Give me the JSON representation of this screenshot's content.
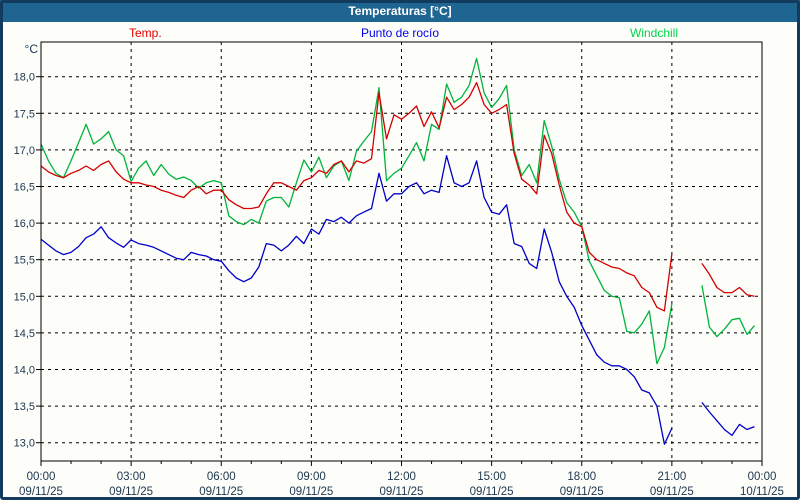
{
  "window": {
    "title": "Temperaturas [°C]"
  },
  "legend": {
    "temp": "Temp.",
    "dew": "Punto de rocío",
    "windchill": "Windchill"
  },
  "colors": {
    "titlebar_background": "#1f6592",
    "outer_frame": "#123b5e",
    "title_text": "#ffffff",
    "axis_text": "#20384f",
    "grid": "#000000",
    "temp_line": "#d40000",
    "dew_point_line": "#0000c8",
    "windchill_line": "#00b43c"
  },
  "chart_data": {
    "type": "line",
    "title": "Temperaturas [°C]",
    "xlabel": "",
    "ylabel": "°C",
    "ylim": [
      12.7,
      18.5
    ],
    "grid": "dashed",
    "legend_position": "top",
    "sample_interval_minutes": 15,
    "x_hours_span": 24,
    "y_ticks": [
      {
        "v": 18.0,
        "label": "18,0"
      },
      {
        "v": 17.5,
        "label": "17,5"
      },
      {
        "v": 17.0,
        "label": "17,0"
      },
      {
        "v": 16.5,
        "label": "16,5"
      },
      {
        "v": 16.0,
        "label": "16,0"
      },
      {
        "v": 15.5,
        "label": "15,5"
      },
      {
        "v": 15.0,
        "label": "15,0"
      },
      {
        "v": 14.5,
        "label": "14,5"
      },
      {
        "v": 14.0,
        "label": "14,0"
      },
      {
        "v": 13.5,
        "label": "13,5"
      },
      {
        "v": 13.0,
        "label": "13,0"
      }
    ],
    "x_ticks": [
      {
        "h": 0,
        "time": "00:00",
        "date": "09/11/25"
      },
      {
        "h": 3,
        "time": "03:00",
        "date": "09/11/25"
      },
      {
        "h": 6,
        "time": "06:00",
        "date": "09/11/25"
      },
      {
        "h": 9,
        "time": "09:00",
        "date": "09/11/25"
      },
      {
        "h": 12,
        "time": "12:00",
        "date": "09/11/25"
      },
      {
        "h": 15,
        "time": "15:00",
        "date": "09/11/25"
      },
      {
        "h": 18,
        "time": "18:00",
        "date": "09/11/25"
      },
      {
        "h": 21,
        "time": "21:00",
        "date": "09/11/25"
      },
      {
        "h": 24,
        "time": "00:00",
        "date": "10/11/25"
      }
    ],
    "series": [
      {
        "name": "Temp.",
        "color": "#d40000",
        "values": [
          16.78,
          16.7,
          16.65,
          16.62,
          16.68,
          16.72,
          16.78,
          16.72,
          16.8,
          16.85,
          16.7,
          16.6,
          16.55,
          16.55,
          16.52,
          16.5,
          16.45,
          16.42,
          16.38,
          16.35,
          16.45,
          16.5,
          16.4,
          16.45,
          16.45,
          16.32,
          16.25,
          16.2,
          16.2,
          16.22,
          16.4,
          16.55,
          16.55,
          16.5,
          16.45,
          16.58,
          16.62,
          16.72,
          16.68,
          16.8,
          16.85,
          16.7,
          16.85,
          16.82,
          16.88,
          17.78,
          17.15,
          17.48,
          17.42,
          17.5,
          17.6,
          17.32,
          17.52,
          17.3,
          17.72,
          17.55,
          17.62,
          17.72,
          17.92,
          17.62,
          17.5,
          17.55,
          17.62,
          16.95,
          16.6,
          16.52,
          16.4,
          17.2,
          16.95,
          16.52,
          16.15,
          16.0,
          15.95,
          15.6,
          15.5,
          15.45,
          15.4,
          15.38,
          15.32,
          15.28,
          15.12,
          15.05,
          14.85,
          14.8,
          15.58,
          null,
          null,
          null,
          15.45,
          15.3,
          15.12,
          15.05,
          15.05,
          15.12,
          15.02,
          15.0,
          null
        ]
      },
      {
        "name": "Punto de rocío",
        "color": "#0000c8",
        "values": [
          15.78,
          15.7,
          15.62,
          15.57,
          15.6,
          15.68,
          15.8,
          15.85,
          15.95,
          15.8,
          15.73,
          15.67,
          15.77,
          15.72,
          15.7,
          15.67,
          15.62,
          15.57,
          15.52,
          15.5,
          15.6,
          15.57,
          15.55,
          15.5,
          15.48,
          15.35,
          15.25,
          15.2,
          15.25,
          15.4,
          15.72,
          15.7,
          15.62,
          15.7,
          15.82,
          15.72,
          15.92,
          15.85,
          16.05,
          16.02,
          16.08,
          16.0,
          16.1,
          16.15,
          16.2,
          16.68,
          16.3,
          16.4,
          16.4,
          16.5,
          16.55,
          16.4,
          16.45,
          16.42,
          16.92,
          16.55,
          16.5,
          16.55,
          16.85,
          16.35,
          16.15,
          16.12,
          16.25,
          15.72,
          15.68,
          15.45,
          15.38,
          15.92,
          15.6,
          15.2,
          15.0,
          14.85,
          14.6,
          14.4,
          14.2,
          14.1,
          14.05,
          14.05,
          14.0,
          13.9,
          13.72,
          13.68,
          13.5,
          12.98,
          13.2,
          null,
          null,
          null,
          13.55,
          13.42,
          13.3,
          13.18,
          13.1,
          13.25,
          13.18,
          13.22,
          null
        ]
      },
      {
        "name": "Windchill",
        "color": "#00b43c",
        "values": [
          17.08,
          16.85,
          16.68,
          16.62,
          16.85,
          17.1,
          17.35,
          17.08,
          17.15,
          17.25,
          17.0,
          16.92,
          16.57,
          16.75,
          16.85,
          16.65,
          16.8,
          16.67,
          16.6,
          16.63,
          16.58,
          16.48,
          16.55,
          16.58,
          16.55,
          16.1,
          16.02,
          15.98,
          16.05,
          16.0,
          16.3,
          16.35,
          16.35,
          16.22,
          16.55,
          16.86,
          16.7,
          16.9,
          16.62,
          16.78,
          16.85,
          16.58,
          16.98,
          17.12,
          17.25,
          17.85,
          16.58,
          16.68,
          16.75,
          16.92,
          17.1,
          16.85,
          17.35,
          17.28,
          17.9,
          17.65,
          17.72,
          17.88,
          18.25,
          17.78,
          17.58,
          17.7,
          17.88,
          17.0,
          16.65,
          16.8,
          16.55,
          17.4,
          17.05,
          16.6,
          16.28,
          16.15,
          15.95,
          15.48,
          15.28,
          15.08,
          15.0,
          14.98,
          14.52,
          14.5,
          14.62,
          14.8,
          14.08,
          14.3,
          14.9,
          null,
          null,
          null,
          15.15,
          14.58,
          14.45,
          14.55,
          14.68,
          14.7,
          14.48,
          14.6,
          null
        ]
      }
    ]
  }
}
